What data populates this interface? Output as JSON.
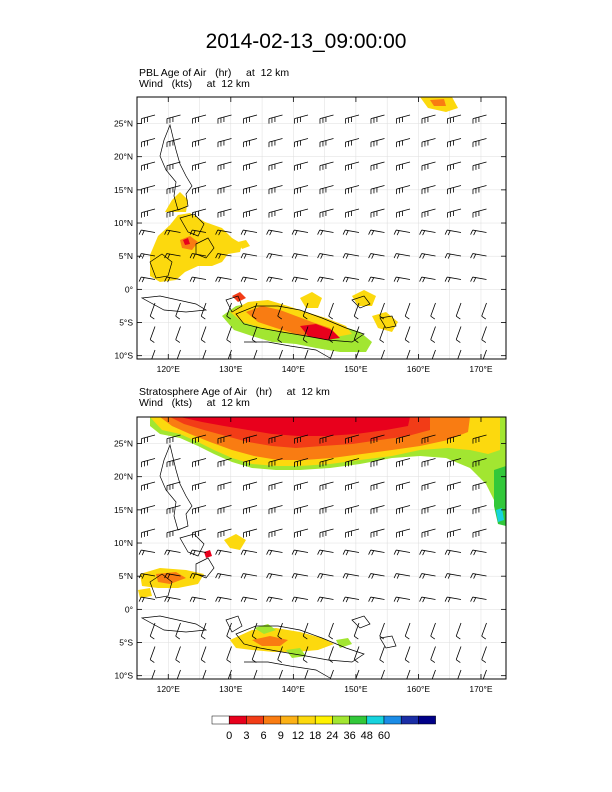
{
  "title": "2014-02-13_09:00:00",
  "maps": [
    {
      "line1": "PBL Age of Air   (hr)     at  12 km",
      "line2": "Wind   (kts)     at  12 km",
      "field": "pbl"
    },
    {
      "line1": "Stratosphere Age of Air   (hr)     at  12 km",
      "line2": "Wind   (kts)     at  12 km",
      "field": "strat"
    }
  ],
  "map_extent": {
    "lon": [
      115,
      174
    ],
    "lat": [
      -10.5,
      29
    ]
  },
  "lon_ticks": [
    "120°E",
    "130°E",
    "140°E",
    "150°E",
    "160°E",
    "170°E"
  ],
  "lon_tick_values": [
    120,
    130,
    140,
    150,
    160,
    170
  ],
  "lat_ticks": [
    "25°N",
    "20°N",
    "15°N",
    "10°N",
    "5°N",
    "0°",
    "5°S",
    "10°S"
  ],
  "lat_tick_values": [
    25,
    20,
    15,
    10,
    5,
    0,
    -5,
    -10
  ],
  "colorbar": {
    "labels": [
      "0",
      "3",
      "6",
      "9",
      "12",
      "18",
      "24",
      "36",
      "48",
      "60"
    ],
    "colors": [
      "#ffffff",
      "#e8001c",
      "#f23c17",
      "#f97c12",
      "#fcb116",
      "#fcd90e",
      "#fff200",
      "#a2e631",
      "#32c83a",
      "#16d3dd",
      "#1b8ce6",
      "#1a2ea6",
      "#000088"
    ]
  }
}
